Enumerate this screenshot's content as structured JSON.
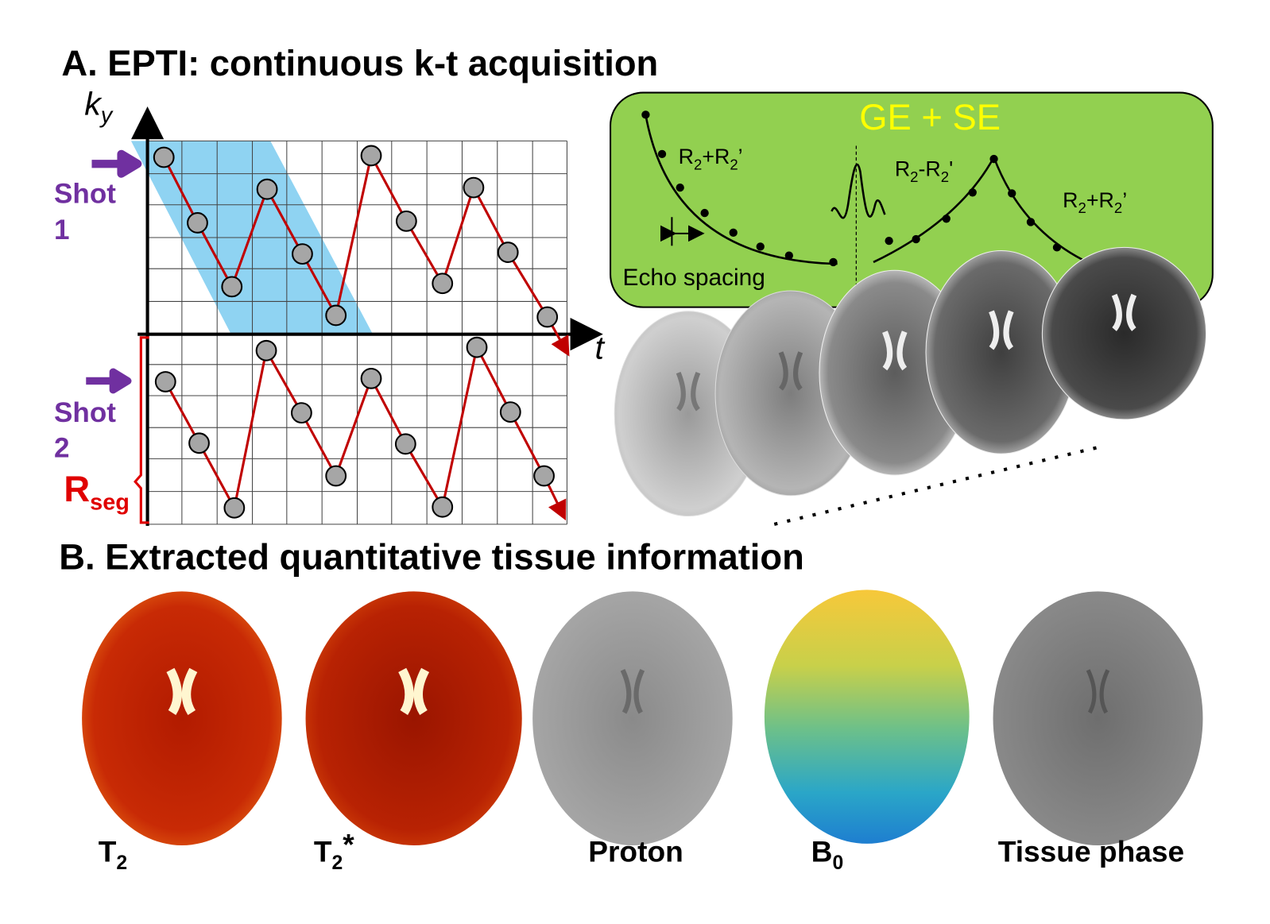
{
  "panel_a": {
    "title": "A. EPTI: continuous k-t acquisition",
    "y_axis_label": {
      "base": "k",
      "sub": "y"
    },
    "x_axis_label": "t",
    "shots": [
      {
        "lines": [
          "Shot",
          "1"
        ]
      },
      {
        "lines": [
          "Shot",
          "2"
        ]
      }
    ],
    "segment_label": {
      "base": "R",
      "sub": "seg"
    },
    "inset": {
      "title": "GE + SE",
      "curve_labels": [
        {
          "parts": [
            {
              "text": "R"
            },
            {
              "sub": "2"
            },
            {
              "text": "+R"
            },
            {
              "sub": "2"
            },
            {
              "text": "’"
            }
          ]
        },
        {
          "parts": [
            {
              "text": "R"
            },
            {
              "sub": "2"
            },
            {
              "text": "-R"
            },
            {
              "sub": "2"
            },
            {
              "text": "'"
            }
          ]
        },
        {
          "parts": [
            {
              "text": "R"
            },
            {
              "sub": "2"
            },
            {
              "text": "+R"
            },
            {
              "sub": "2"
            },
            {
              "text": "’"
            }
          ]
        }
      ],
      "echo_spacing": "Echo spacing"
    }
  },
  "panel_b": {
    "title": "B. Extracted quantitative tissue information",
    "maps": [
      {
        "label": {
          "base": "T",
          "sub": "2"
        }
      },
      {
        "label": {
          "base": "T",
          "sub": "2",
          "suffix": "*"
        }
      },
      {
        "label": {
          "base": "Proton"
        }
      },
      {
        "label": {
          "base": "B",
          "sub": "0"
        }
      },
      {
        "label": {
          "base": "Tissue phase"
        }
      }
    ]
  }
}
